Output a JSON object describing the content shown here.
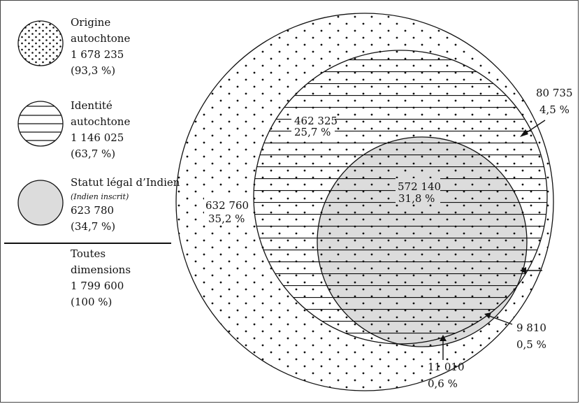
{
  "legend": {
    "origin": {
      "line1": "Origine",
      "line2": "autochtone",
      "count": "1 678 235",
      "pct": "(93,3 %)",
      "icon": "dotted-circle-icon"
    },
    "identity": {
      "line1": "Identité",
      "line2": "autochtone",
      "count": "1 146 025",
      "pct": "(63,7 %)",
      "icon": "striped-circle-icon"
    },
    "status": {
      "line1": "Statut légal d’Indien",
      "line2": "(Indien inscrit)",
      "count": "623 780",
      "pct": "(34,7 %)",
      "icon": "grey-circle-icon"
    },
    "total": {
      "line1": "Toutes",
      "line2": "dimensions",
      "count": "1 799 600",
      "pct": "(100 %)"
    }
  },
  "regions": {
    "origin_only": {
      "count": "632 760",
      "pct": "35,2 %"
    },
    "origin_identity": {
      "count": "462 325",
      "pct": "25,7 %"
    },
    "all_three": {
      "count": "572 140",
      "pct": "31,8 %"
    },
    "identity_only": {
      "count": "80 735",
      "pct": "4,5 %"
    },
    "status_only": {
      "count": "9 810",
      "pct": "0,5 %"
    },
    "status_origin": {
      "count": "11 010",
      "pct": "0,6 %"
    }
  },
  "colors": {
    "status_fill": "#dcdcdc",
    "stroke": "#111111",
    "background": "#ffffff"
  }
}
